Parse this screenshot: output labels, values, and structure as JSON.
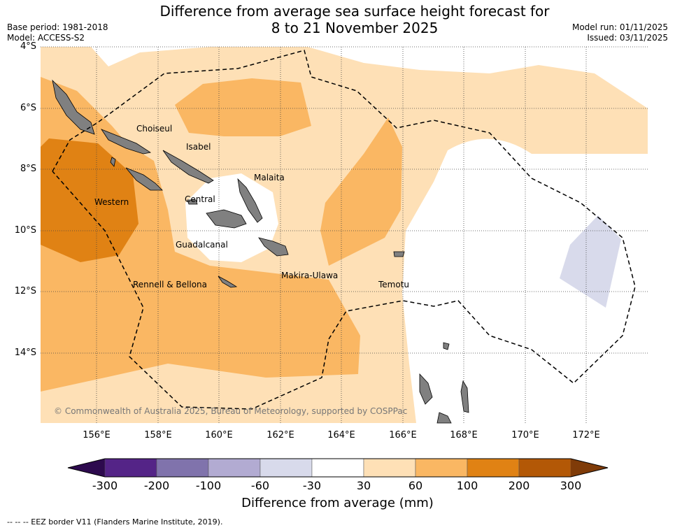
{
  "title_line1": "Difference from average sea surface height forecast for",
  "title_line2": "8 to 21 November 2025",
  "base_period": "Base period: 1981-2018",
  "model": "Model: ACCESS-S2",
  "model_run": "Model run: 01/11/2025",
  "issued": "Issued: 03/11/2025",
  "lat_labels": [
    "4°S",
    "6°S",
    "8°S",
    "10°S",
    "12°S",
    "14°S"
  ],
  "lon_labels": [
    "156°E",
    "158°E",
    "160°E",
    "162°E",
    "164°E",
    "166°E",
    "168°E",
    "170°E",
    "172°E"
  ],
  "places": {
    "choiseul": "Choiseul",
    "isabel": "Isabel",
    "malaita": "Malaita",
    "western": "Western",
    "central": "Central",
    "guadalcanal": "Guadalcanal",
    "makira": "Makira-Ulawa",
    "rennell": "Rennell & Bellona",
    "temotu": "Temotu"
  },
  "copyright": "© Commonwealth of Australia 2025, Bureau of Meteorology, supported by COSPPac",
  "colorbar": {
    "ticks": [
      "-300",
      "-200",
      "-100",
      "-60",
      "-30",
      "30",
      "60",
      "100",
      "200",
      "300"
    ],
    "colors": [
      "#2d0a4e",
      "#542487",
      "#8073ac",
      "#b2abd2",
      "#d8daeb",
      "#ffffff",
      "#fee0b6",
      "#fab763",
      "#e08214",
      "#b35806",
      "#7f3b08"
    ],
    "label": "Difference from average (mm)"
  },
  "eez_note": "--  --  -- EEZ border V11 (Flanders Marine Institute, 2019)."
}
